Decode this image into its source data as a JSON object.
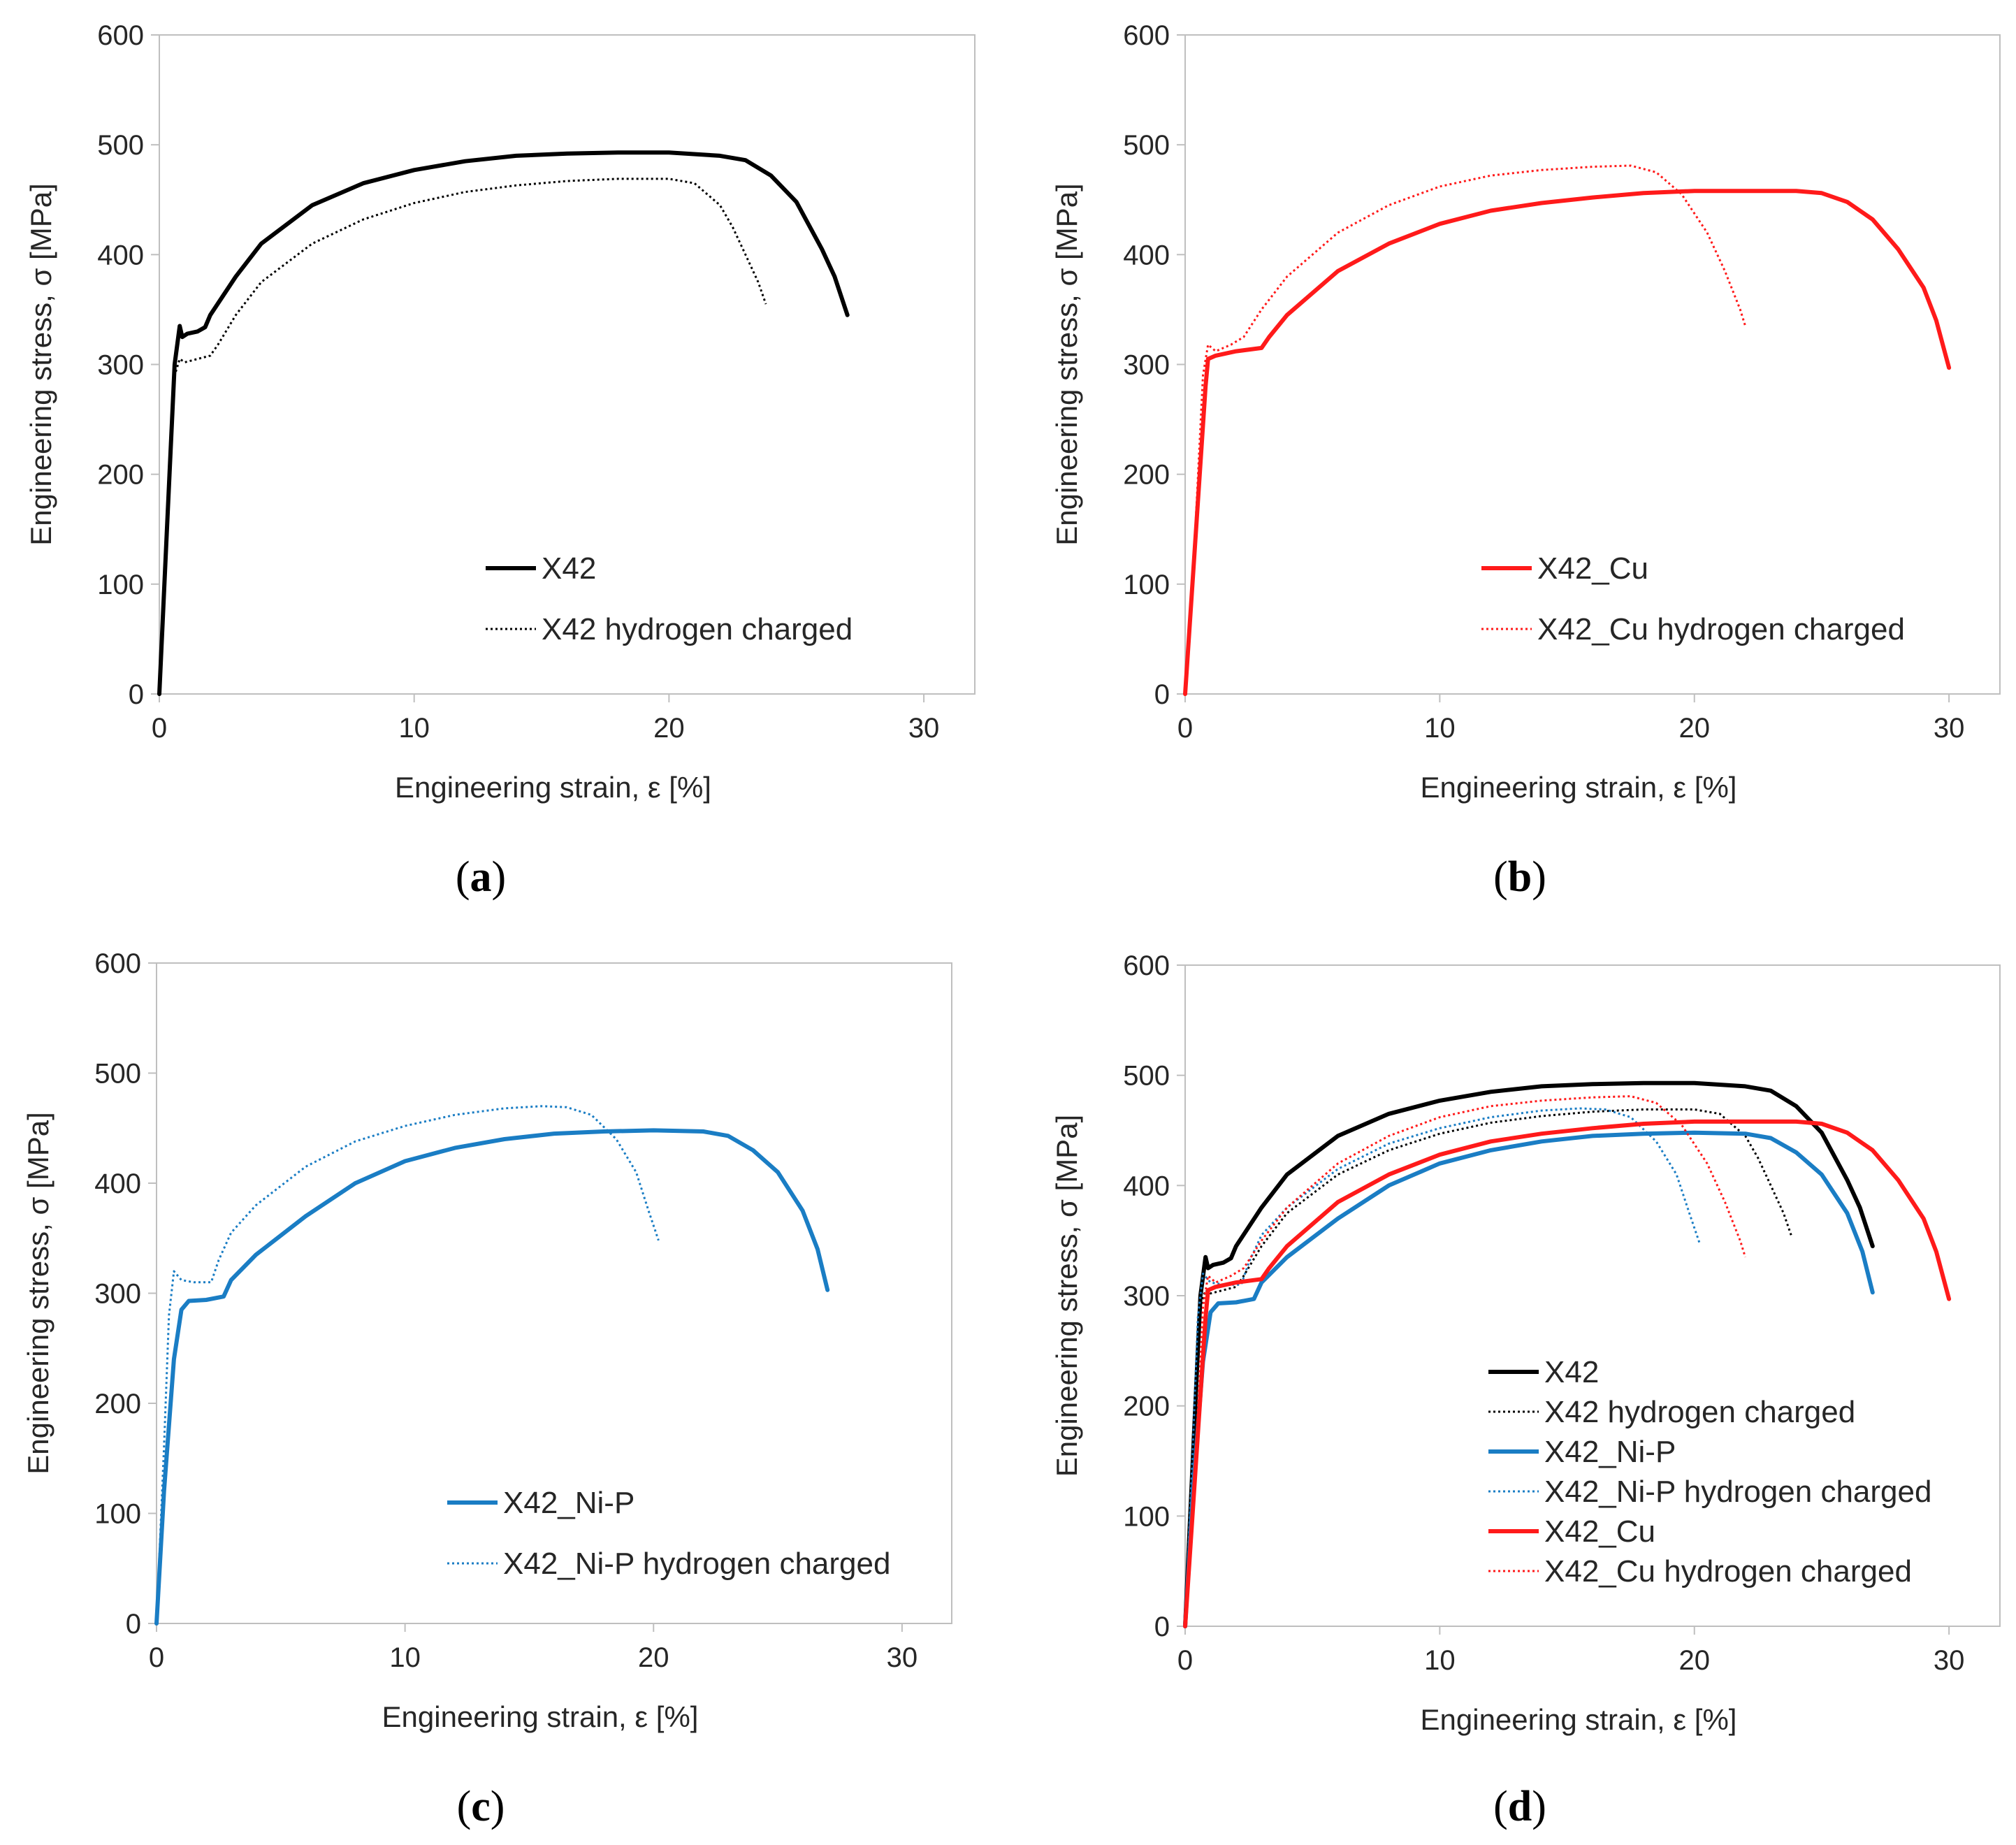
{
  "figure": {
    "panels": [
      "a",
      "b",
      "c",
      "d"
    ],
    "captions": [
      "(a)",
      "(b)",
      "(c)",
      "(d)"
    ]
  },
  "colors": {
    "X42": "#000000",
    "X42_Ni-P": "#1a7dc4",
    "X42_Cu": "#ff1a1a",
    "axis": "#bfbfbf",
    "text": "#262626"
  },
  "chart_data": [
    {
      "type": "line",
      "panel": "a",
      "caption": "(a)",
      "xlabel": "Engineering strain, ε [%]",
      "ylabel": "Engineering stress, σ [MPa]",
      "xlim": [
        0,
        32
      ],
      "ylim": [
        0,
        600
      ],
      "xticks": [
        "0",
        "10",
        "20",
        "30"
      ],
      "yticks": [
        "0",
        "100",
        "200",
        "300",
        "400",
        "500",
        "600"
      ],
      "legend_position": "center-right",
      "series": [
        {
          "name": "X42",
          "style": "solid",
          "color": "#000000",
          "x": [
            0,
            0.3,
            0.6,
            0.8,
            0.9,
            1.1,
            1.5,
            1.8,
            2.0,
            3,
            4,
            6,
            8,
            10,
            12,
            14,
            16,
            18,
            20,
            22,
            23,
            24,
            25,
            26,
            26.5,
            27
          ],
          "y": [
            0,
            150,
            300,
            335,
            325,
            328,
            330,
            334,
            345,
            380,
            410,
            445,
            465,
            477,
            485,
            490,
            492,
            493,
            493,
            490,
            486,
            472,
            448,
            405,
            380,
            345
          ]
        },
        {
          "name": "X42 hydrogen charged",
          "style": "dotted",
          "color": "#000000",
          "x": [
            0,
            0.3,
            0.6,
            0.8,
            1.0,
            1.5,
            2.0,
            2.3,
            3,
            4,
            6,
            8,
            10,
            12,
            14,
            16,
            18,
            20,
            21,
            22,
            22.5,
            23,
            23.5,
            23.8
          ],
          "y": [
            0,
            150,
            290,
            305,
            302,
            305,
            308,
            318,
            345,
            375,
            410,
            432,
            447,
            457,
            463,
            467,
            469,
            469,
            465,
            445,
            425,
            400,
            375,
            355
          ]
        }
      ]
    },
    {
      "type": "line",
      "panel": "b",
      "caption": "(b)",
      "xlabel": "Engineering strain, ε [%]",
      "ylabel": "Engineering stress, σ [MPa]",
      "xlim": [
        0,
        32
      ],
      "ylim": [
        0,
        600
      ],
      "xticks": [
        "0",
        "10",
        "20",
        "30"
      ],
      "yticks": [
        "0",
        "100",
        "200",
        "300",
        "400",
        "500",
        "600"
      ],
      "legend_position": "center-right",
      "series": [
        {
          "name": "X42_Cu",
          "style": "solid",
          "color": "#ff1a1a",
          "x": [
            0,
            0.4,
            0.8,
            0.9,
            1.2,
            2.0,
            3.0,
            3.3,
            4,
            6,
            8,
            10,
            12,
            14,
            16,
            18,
            20,
            22,
            24,
            25,
            26,
            27,
            28,
            29,
            29.5,
            30
          ],
          "y": [
            0,
            140,
            280,
            305,
            308,
            312,
            315,
            325,
            345,
            385,
            410,
            428,
            440,
            447,
            452,
            456,
            458,
            458,
            458,
            456,
            448,
            432,
            405,
            370,
            340,
            297
          ]
        },
        {
          "name": "X42_Cu hydrogen charged",
          "style": "dotted",
          "color": "#ff1a1a",
          "x": [
            0,
            0.4,
            0.7,
            0.9,
            1.2,
            1.8,
            2.3,
            3,
            4,
            6,
            8,
            10,
            12,
            14,
            16,
            17.5,
            18.5,
            19.5,
            20.5,
            21.2,
            21.8,
            22
          ],
          "y": [
            0,
            150,
            290,
            318,
            312,
            318,
            325,
            350,
            380,
            420,
            445,
            462,
            472,
            477,
            480,
            481,
            475,
            455,
            420,
            385,
            350,
            335
          ]
        }
      ]
    },
    {
      "type": "line",
      "panel": "c",
      "caption": "(c)",
      "xlabel": "Engineering strain, ε [%]",
      "ylabel": "Engineering stress, σ [MPa]",
      "xlim": [
        0,
        32
      ],
      "ylim": [
        0,
        600
      ],
      "xticks": [
        "0",
        "10",
        "20",
        "30"
      ],
      "yticks": [
        "0",
        "100",
        "200",
        "300",
        "400",
        "500",
        "600"
      ],
      "legend_position": "bottom-right",
      "series": [
        {
          "name": "X42_Ni-P",
          "style": "solid",
          "color": "#1a7dc4",
          "x": [
            0,
            0.3,
            0.7,
            1.0,
            1.3,
            2.0,
            2.7,
            3.0,
            4,
            6,
            8,
            10,
            12,
            14,
            16,
            18,
            20,
            22,
            23,
            24,
            25,
            26,
            26.6,
            27
          ],
          "y": [
            0,
            120,
            240,
            285,
            293,
            294,
            297,
            312,
            335,
            370,
            400,
            420,
            432,
            440,
            445,
            447,
            448,
            447,
            443,
            430,
            410,
            375,
            340,
            303
          ]
        },
        {
          "name": "X42_Ni-P hydrogen charged",
          "style": "dotted",
          "color": "#1a7dc4",
          "x": [
            0,
            0.3,
            0.5,
            0.7,
            1.0,
            1.5,
            2.2,
            2.5,
            3,
            4,
            6,
            8,
            10,
            12,
            14,
            15.5,
            16.5,
            17.5,
            18.5,
            19.3,
            19.8,
            20.2
          ],
          "y": [
            0,
            160,
            280,
            320,
            312,
            310,
            310,
            330,
            355,
            380,
            415,
            438,
            452,
            462,
            468,
            470,
            469,
            462,
            440,
            410,
            375,
            348
          ]
        }
      ]
    },
    {
      "type": "line",
      "panel": "d",
      "caption": "(d)",
      "xlabel": "Engineering strain, ε [%]",
      "ylabel": "Engineering stress, σ [MPa]",
      "xlim": [
        0,
        32
      ],
      "ylim": [
        0,
        600
      ],
      "xticks": [
        "0",
        "10",
        "20",
        "30"
      ],
      "yticks": [
        "0",
        "100",
        "200",
        "300",
        "400",
        "500",
        "600"
      ],
      "legend_position": "bottom-right",
      "series": [
        {
          "name": "X42",
          "style": "solid",
          "color": "#000000",
          "x": [
            0,
            0.3,
            0.6,
            0.8,
            0.9,
            1.1,
            1.5,
            1.8,
            2.0,
            3,
            4,
            6,
            8,
            10,
            12,
            14,
            16,
            18,
            20,
            22,
            23,
            24,
            25,
            26,
            26.5,
            27
          ],
          "y": [
            0,
            150,
            300,
            335,
            325,
            328,
            330,
            334,
            345,
            380,
            410,
            445,
            465,
            477,
            485,
            490,
            492,
            493,
            493,
            490,
            486,
            472,
            448,
            405,
            380,
            345
          ]
        },
        {
          "name": "X42 hydrogen charged",
          "style": "dotted",
          "color": "#000000",
          "x": [
            0,
            0.3,
            0.6,
            0.8,
            1.0,
            1.5,
            2.0,
            2.3,
            3,
            4,
            6,
            8,
            10,
            12,
            14,
            16,
            18,
            20,
            21,
            22,
            22.5,
            23,
            23.5,
            23.8
          ],
          "y": [
            0,
            150,
            290,
            305,
            302,
            305,
            308,
            318,
            345,
            375,
            410,
            432,
            447,
            457,
            463,
            467,
            469,
            469,
            465,
            445,
            425,
            400,
            375,
            355
          ]
        },
        {
          "name": "X42_Ni-P",
          "style": "solid",
          "color": "#1a7dc4",
          "x": [
            0,
            0.3,
            0.7,
            1.0,
            1.3,
            2.0,
            2.7,
            3.0,
            4,
            6,
            8,
            10,
            12,
            14,
            16,
            18,
            20,
            22,
            23,
            24,
            25,
            26,
            26.6,
            27
          ],
          "y": [
            0,
            120,
            240,
            285,
            293,
            294,
            297,
            312,
            335,
            370,
            400,
            420,
            432,
            440,
            445,
            447,
            448,
            447,
            443,
            430,
            410,
            375,
            340,
            303
          ]
        },
        {
          "name": "X42_Ni-P hydrogen charged",
          "style": "dotted",
          "color": "#1a7dc4",
          "x": [
            0,
            0.3,
            0.5,
            0.7,
            1.0,
            1.5,
            2.2,
            2.5,
            3,
            4,
            6,
            8,
            10,
            12,
            14,
            15.5,
            16.5,
            17.5,
            18.5,
            19.3,
            19.8,
            20.2
          ],
          "y": [
            0,
            160,
            280,
            320,
            312,
            310,
            310,
            330,
            355,
            380,
            415,
            438,
            452,
            462,
            468,
            470,
            469,
            462,
            440,
            410,
            375,
            348
          ]
        },
        {
          "name": "X42_Cu",
          "style": "solid",
          "color": "#ff1a1a",
          "x": [
            0,
            0.4,
            0.8,
            0.9,
            1.2,
            2.0,
            3.0,
            3.3,
            4,
            6,
            8,
            10,
            12,
            14,
            16,
            18,
            20,
            22,
            24,
            25,
            26,
            27,
            28,
            29,
            29.5,
            30
          ],
          "y": [
            0,
            140,
            280,
            305,
            308,
            312,
            315,
            325,
            345,
            385,
            410,
            428,
            440,
            447,
            452,
            456,
            458,
            458,
            458,
            456,
            448,
            432,
            405,
            370,
            340,
            297
          ]
        },
        {
          "name": "X42_Cu hydrogen charged",
          "style": "dotted",
          "color": "#ff1a1a",
          "x": [
            0,
            0.4,
            0.7,
            0.9,
            1.2,
            1.8,
            2.3,
            3,
            4,
            6,
            8,
            10,
            12,
            14,
            16,
            17.5,
            18.5,
            19.5,
            20.5,
            21.2,
            21.8,
            22
          ],
          "y": [
            0,
            150,
            290,
            318,
            312,
            318,
            325,
            350,
            380,
            420,
            445,
            462,
            472,
            477,
            480,
            481,
            475,
            455,
            420,
            385,
            350,
            335
          ]
        }
      ]
    }
  ]
}
